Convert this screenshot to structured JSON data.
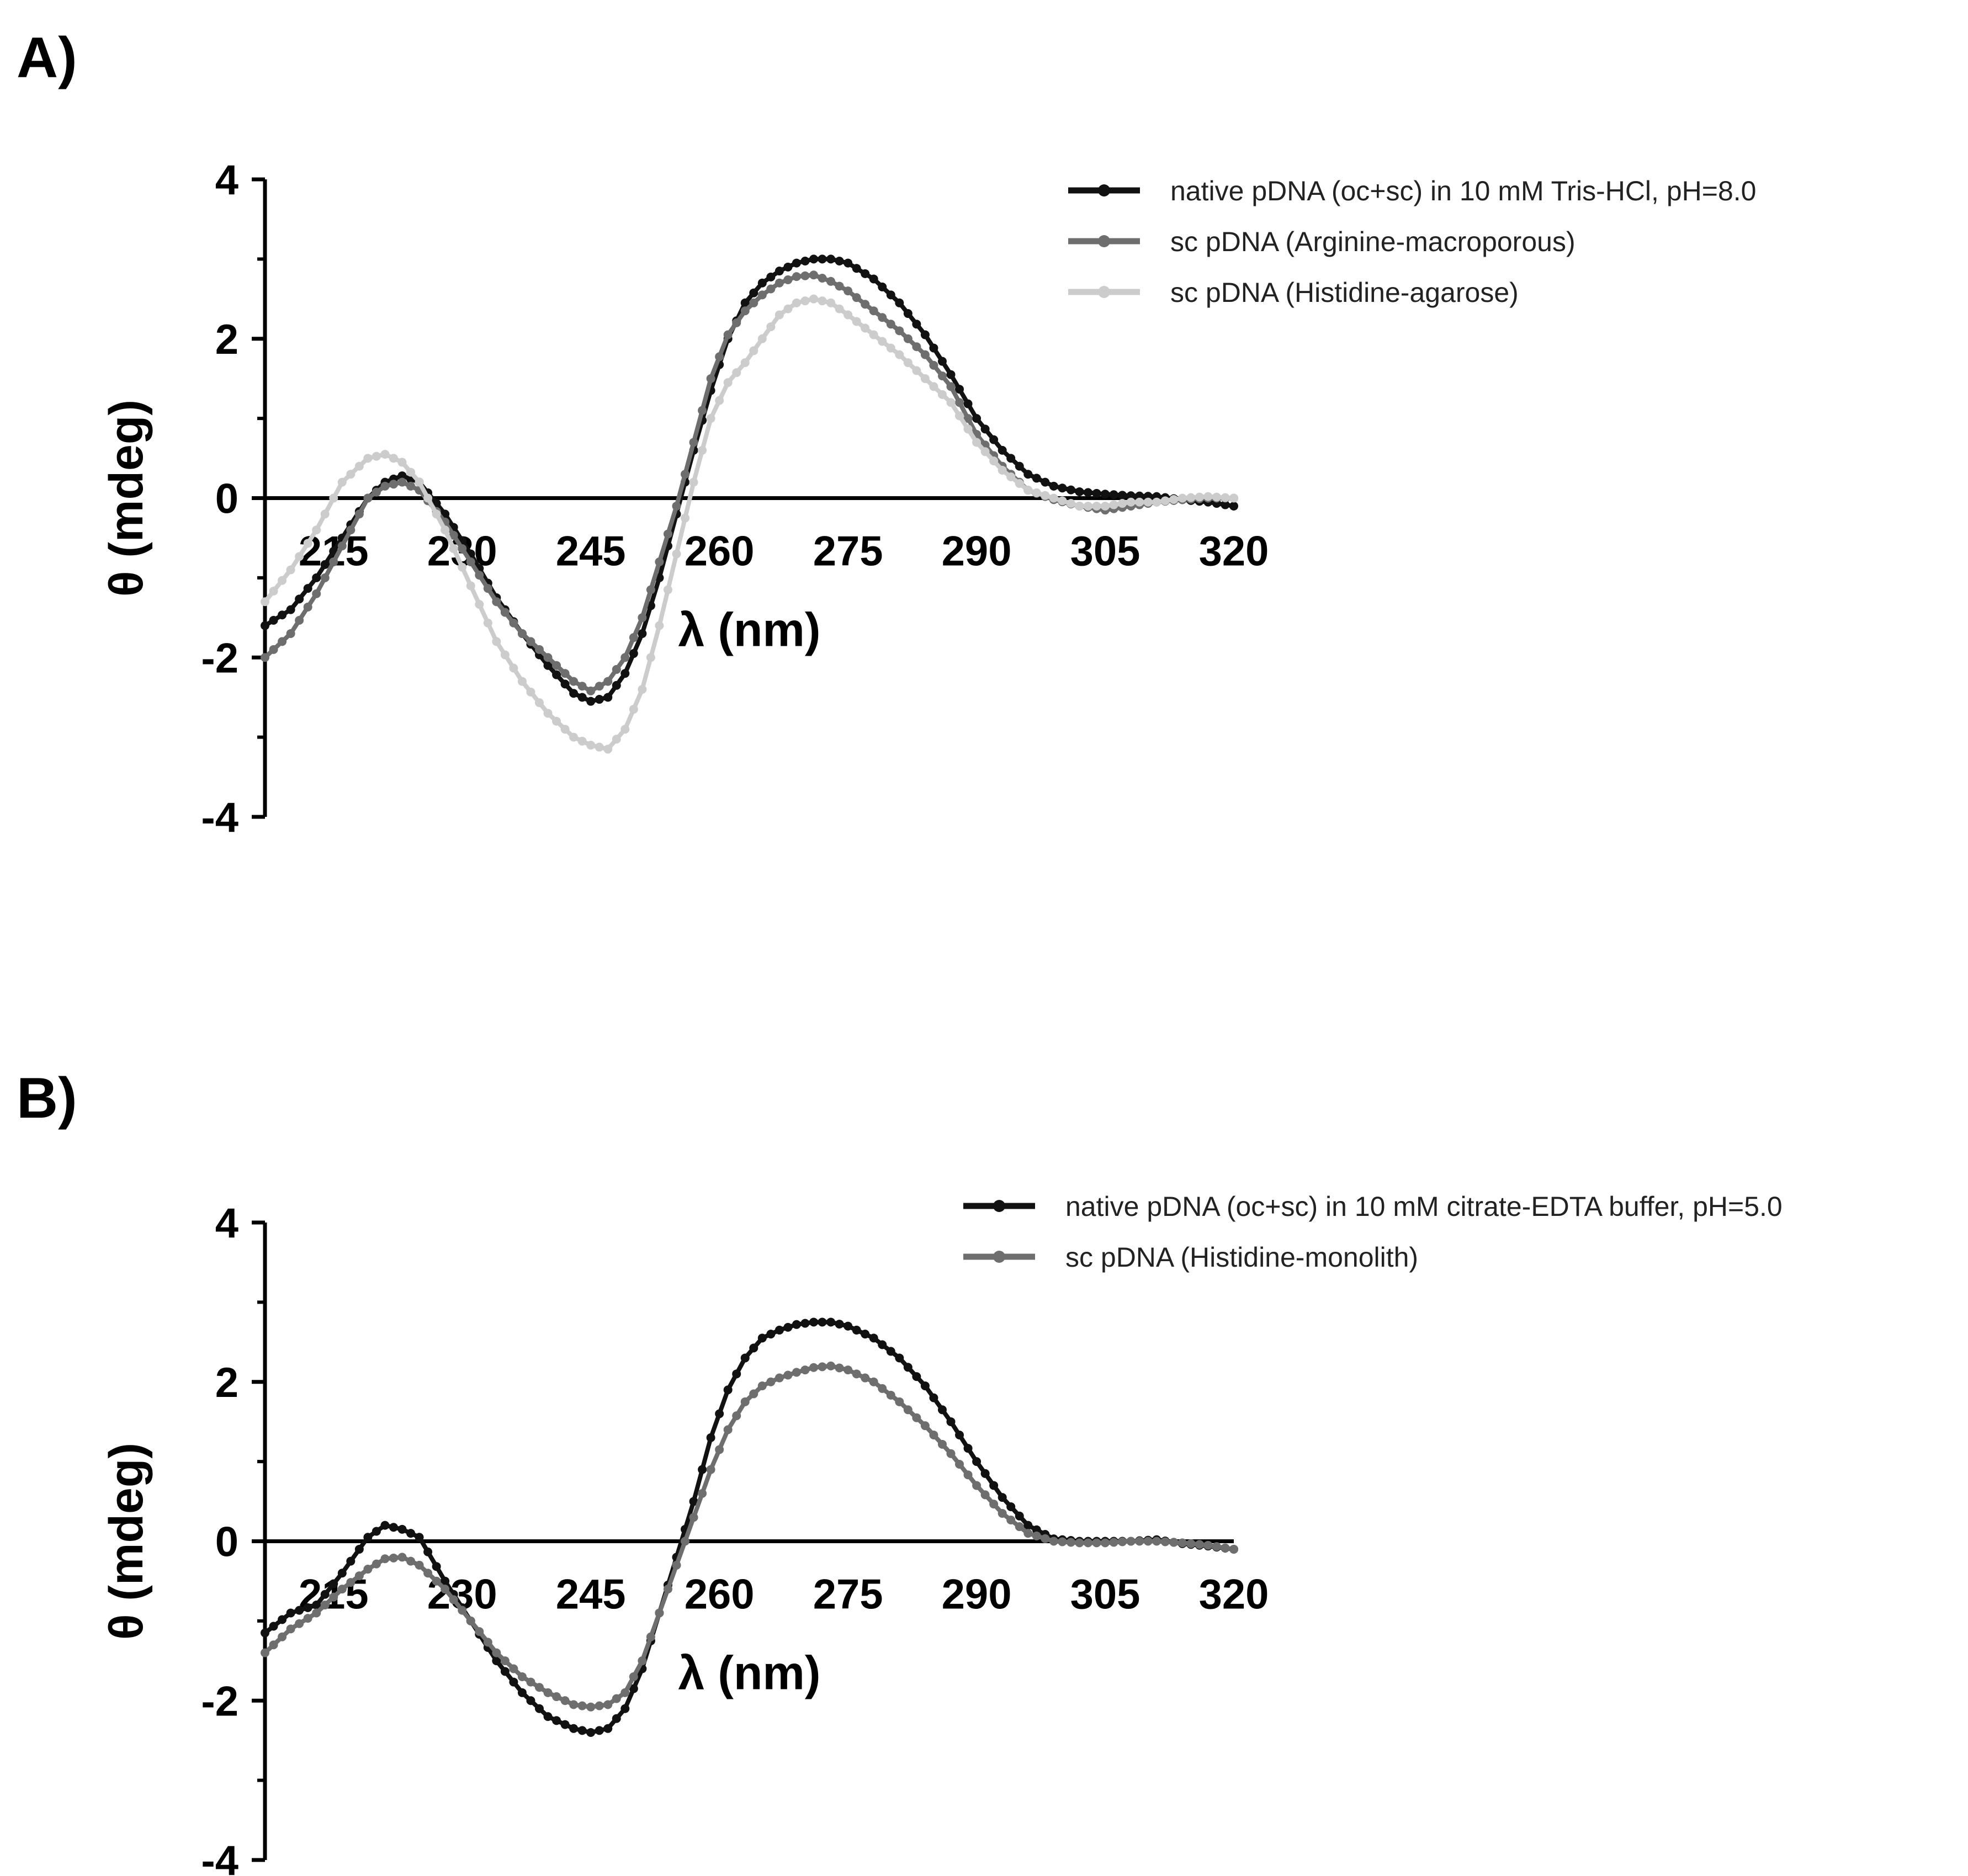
{
  "panels": [
    {
      "label": "A)",
      "chart_data": {
        "type": "line",
        "xlabel": "λ (nm)",
        "ylabel": "θ (mdeg)",
        "xlim": [
          207,
          320
        ],
        "ylim": [
          -4,
          4
        ],
        "xticks": [
          215,
          230,
          245,
          260,
          275,
          290,
          305,
          320
        ],
        "xtick_labels": [
          "215",
          "230",
          "245",
          "260",
          "275",
          "290",
          "305",
          "320"
        ],
        "yticks": [
          -4,
          -2,
          0,
          2,
          4
        ],
        "ytick_labels": [
          "-4",
          "-2",
          "0",
          "2",
          "4"
        ],
        "legend_position": "top-right",
        "series": [
          {
            "name": "native pDNA (oc+sc) in 10 mM Tris-HCl, pH=8.0",
            "color": "#111111",
            "x": [
              207,
              210,
              213,
              216,
              219,
              221,
              223,
              225,
              228,
              231,
              234,
              237,
              240,
              243,
              245,
              247,
              249,
              251,
              253,
              255,
              257,
              259,
              261,
              263,
              265,
              267,
              269,
              271,
              273,
              275,
              278,
              281,
              284,
              287,
              290,
              293,
              296,
              299,
              302,
              305,
              308,
              311,
              314,
              317,
              320
            ],
            "y": [
              -1.6,
              -1.4,
              -1.0,
              -0.5,
              0.0,
              0.2,
              0.28,
              0.2,
              -0.2,
              -0.7,
              -1.25,
              -1.7,
              -2.1,
              -2.45,
              -2.55,
              -2.5,
              -2.2,
              -1.7,
              -1.0,
              -0.2,
              0.6,
              1.35,
              2.0,
              2.45,
              2.7,
              2.85,
              2.95,
              3.0,
              3.0,
              2.95,
              2.75,
              2.45,
              2.05,
              1.55,
              1.0,
              0.6,
              0.3,
              0.15,
              0.08,
              0.05,
              0.03,
              0.02,
              -0.02,
              -0.05,
              -0.1
            ]
          },
          {
            "name": "sc pDNA (Arginine-macroporous)",
            "color": "#6e6e6e",
            "x": [
              207,
              210,
              213,
              216,
              219,
              221,
              223,
              225,
              228,
              231,
              234,
              237,
              240,
              243,
              245,
              247,
              249,
              251,
              253,
              255,
              257,
              259,
              261,
              263,
              265,
              267,
              269,
              271,
              273,
              275,
              278,
              281,
              284,
              287,
              290,
              293,
              296,
              299,
              302,
              305,
              308,
              311,
              314,
              317,
              320
            ],
            "y": [
              -2.0,
              -1.7,
              -1.2,
              -0.6,
              0.0,
              0.15,
              0.2,
              0.1,
              -0.3,
              -0.8,
              -1.3,
              -1.7,
              -2.0,
              -2.3,
              -2.42,
              -2.3,
              -2.0,
              -1.5,
              -0.8,
              -0.1,
              0.7,
              1.5,
              2.05,
              2.35,
              2.55,
              2.7,
              2.78,
              2.8,
              2.72,
              2.6,
              2.35,
              2.1,
              1.8,
              1.4,
              0.8,
              0.4,
              0.1,
              -0.02,
              -0.1,
              -0.15,
              -0.1,
              -0.05,
              -0.02,
              0.0,
              0.0
            ]
          },
          {
            "name": "sc pDNA (Histidine-agarose)",
            "color": "#cccccc",
            "x": [
              207,
              210,
              213,
              216,
              219,
              221,
              223,
              225,
              228,
              231,
              234,
              237,
              240,
              243,
              245,
              247,
              249,
              251,
              253,
              255,
              257,
              259,
              261,
              263,
              265,
              267,
              269,
              271,
              273,
              275,
              278,
              281,
              284,
              287,
              290,
              293,
              296,
              299,
              302,
              305,
              308,
              311,
              314,
              317,
              320
            ],
            "y": [
              -1.3,
              -0.9,
              -0.4,
              0.2,
              0.5,
              0.55,
              0.45,
              0.2,
              -0.4,
              -1.1,
              -1.8,
              -2.3,
              -2.7,
              -3.0,
              -3.1,
              -3.15,
              -2.9,
              -2.4,
              -1.6,
              -0.7,
              0.2,
              1.0,
              1.45,
              1.7,
              2.0,
              2.3,
              2.45,
              2.5,
              2.45,
              2.3,
              2.05,
              1.8,
              1.5,
              1.2,
              0.7,
              0.35,
              0.1,
              0.0,
              -0.1,
              -0.1,
              -0.05,
              -0.05,
              0.0,
              0.02,
              0.0
            ]
          }
        ]
      }
    },
    {
      "label": "B)",
      "chart_data": {
        "type": "line",
        "xlabel": "λ (nm)",
        "ylabel": "θ (mdeg)",
        "xlim": [
          207,
          320
        ],
        "ylim": [
          -4,
          4
        ],
        "xticks": [
          215,
          230,
          245,
          260,
          275,
          290,
          305,
          320
        ],
        "xtick_labels": [
          "215",
          "230",
          "245",
          "260",
          "275",
          "290",
          "305",
          "320"
        ],
        "yticks": [
          -4,
          -2,
          0,
          2,
          4
        ],
        "ytick_labels": [
          "-4",
          "-2",
          "0",
          "2",
          "4"
        ],
        "legend_position": "top-right",
        "series": [
          {
            "name": "native pDNA (oc+sc) in 10 mM citrate-EDTA buffer, pH=5.0",
            "color": "#111111",
            "x": [
              207,
              210,
              213,
              216,
              219,
              221,
              223,
              225,
              228,
              231,
              234,
              237,
              240,
              243,
              245,
              247,
              249,
              251,
              253,
              255,
              257,
              259,
              261,
              263,
              265,
              267,
              269,
              271,
              273,
              275,
              278,
              281,
              284,
              287,
              290,
              293,
              296,
              299,
              302,
              305,
              308,
              311,
              314,
              317,
              320
            ],
            "y": [
              -1.15,
              -0.9,
              -0.8,
              -0.4,
              0.05,
              0.2,
              0.15,
              0.05,
              -0.5,
              -1.0,
              -1.5,
              -1.9,
              -2.2,
              -2.35,
              -2.4,
              -2.35,
              -2.1,
              -1.6,
              -0.9,
              -0.2,
              0.5,
              1.3,
              1.9,
              2.3,
              2.55,
              2.65,
              2.72,
              2.75,
              2.75,
              2.7,
              2.55,
              2.3,
              1.95,
              1.5,
              1.0,
              0.55,
              0.2,
              0.03,
              0.0,
              0.0,
              0.0,
              0.02,
              -0.03,
              -0.06,
              -0.1
            ]
          },
          {
            "name": "sc pDNA (Histidine-monolith)",
            "color": "#6e6e6e",
            "x": [
              207,
              210,
              213,
              216,
              219,
              221,
              223,
              225,
              228,
              231,
              234,
              237,
              240,
              243,
              245,
              247,
              249,
              251,
              253,
              255,
              257,
              259,
              261,
              263,
              265,
              267,
              269,
              271,
              273,
              275,
              278,
              281,
              284,
              287,
              290,
              293,
              296,
              299,
              302,
              305,
              308,
              311,
              314,
              317,
              320
            ],
            "y": [
              -1.4,
              -1.1,
              -0.9,
              -0.6,
              -0.35,
              -0.22,
              -0.2,
              -0.3,
              -0.6,
              -1.0,
              -1.4,
              -1.7,
              -1.9,
              -2.05,
              -2.08,
              -2.05,
              -1.9,
              -1.5,
              -0.9,
              -0.3,
              0.3,
              0.9,
              1.4,
              1.75,
              1.95,
              2.05,
              2.12,
              2.18,
              2.2,
              2.15,
              2.0,
              1.75,
              1.45,
              1.1,
              0.7,
              0.35,
              0.1,
              0.0,
              -0.02,
              -0.02,
              0.0,
              0.0,
              -0.02,
              -0.05,
              -0.1
            ]
          }
        ]
      }
    }
  ]
}
